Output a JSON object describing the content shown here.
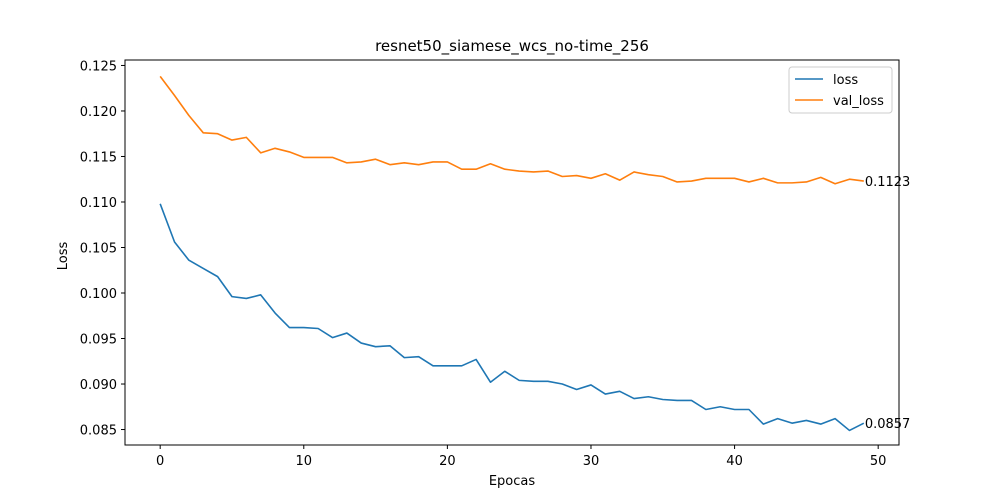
{
  "chart_data": {
    "type": "line",
    "title": "resnet50_siamese_wcs_no-time_256",
    "xlabel": "Epocas",
    "ylabel": "Loss",
    "xlim": [
      -2.45,
      51.45
    ],
    "ylim": [
      0.0833,
      0.1256
    ],
    "xticks": [
      0,
      10,
      20,
      30,
      40,
      50
    ],
    "yticks": [
      0.085,
      0.09,
      0.095,
      0.1,
      0.105,
      0.11,
      0.115,
      0.12,
      0.125
    ],
    "ytick_labels": [
      "0.085",
      "0.090",
      "0.095",
      "0.100",
      "0.105",
      "0.110",
      "0.115",
      "0.120",
      "0.125"
    ],
    "grid": false,
    "legend_position": "top-right",
    "x": [
      0,
      1,
      2,
      3,
      4,
      5,
      6,
      7,
      8,
      9,
      10,
      11,
      12,
      13,
      14,
      15,
      16,
      17,
      18,
      19,
      20,
      21,
      22,
      23,
      24,
      25,
      26,
      27,
      28,
      29,
      30,
      31,
      32,
      33,
      34,
      35,
      36,
      37,
      38,
      39,
      40,
      41,
      42,
      43,
      44,
      45,
      46,
      47,
      48,
      49
    ],
    "series": [
      {
        "name": "loss",
        "color": "#1f77b4",
        "values": [
          0.1098,
          0.1056,
          0.1036,
          0.1027,
          0.1018,
          0.0996,
          0.0994,
          0.0998,
          0.0978,
          0.0962,
          0.0962,
          0.0961,
          0.0951,
          0.0956,
          0.0945,
          0.0941,
          0.0942,
          0.0929,
          0.093,
          0.092,
          0.092,
          0.092,
          0.0927,
          0.0902,
          0.0914,
          0.0904,
          0.0903,
          0.0903,
          0.09,
          0.0894,
          0.0899,
          0.0889,
          0.0892,
          0.0884,
          0.0886,
          0.0883,
          0.0882,
          0.0882,
          0.0872,
          0.0875,
          0.0872,
          0.0872,
          0.0856,
          0.0862,
          0.0857,
          0.086,
          0.0856,
          0.0862,
          0.0849,
          0.0857
        ]
      },
      {
        "name": "val_loss",
        "color": "#ff7f0e",
        "values": [
          0.1238,
          0.1217,
          0.1195,
          0.1176,
          0.1175,
          0.1168,
          0.1171,
          0.1154,
          0.1159,
          0.1155,
          0.1149,
          0.1149,
          0.1149,
          0.1143,
          0.1144,
          0.1147,
          0.1141,
          0.1143,
          0.1141,
          0.1144,
          0.1144,
          0.1136,
          0.1136,
          0.1142,
          0.1136,
          0.1134,
          0.1133,
          0.1134,
          0.1128,
          0.1129,
          0.1126,
          0.1131,
          0.1124,
          0.1133,
          0.113,
          0.1128,
          0.1122,
          0.1123,
          0.1126,
          0.1126,
          0.1126,
          0.1122,
          0.1126,
          0.1121,
          0.1121,
          0.1122,
          0.1127,
          0.112,
          0.1125,
          0.1123
        ]
      }
    ],
    "annotations": [
      {
        "x": 49,
        "y": 0.1123,
        "text": "0.1123"
      },
      {
        "x": 49,
        "y": 0.0857,
        "text": "0.0857"
      }
    ]
  }
}
